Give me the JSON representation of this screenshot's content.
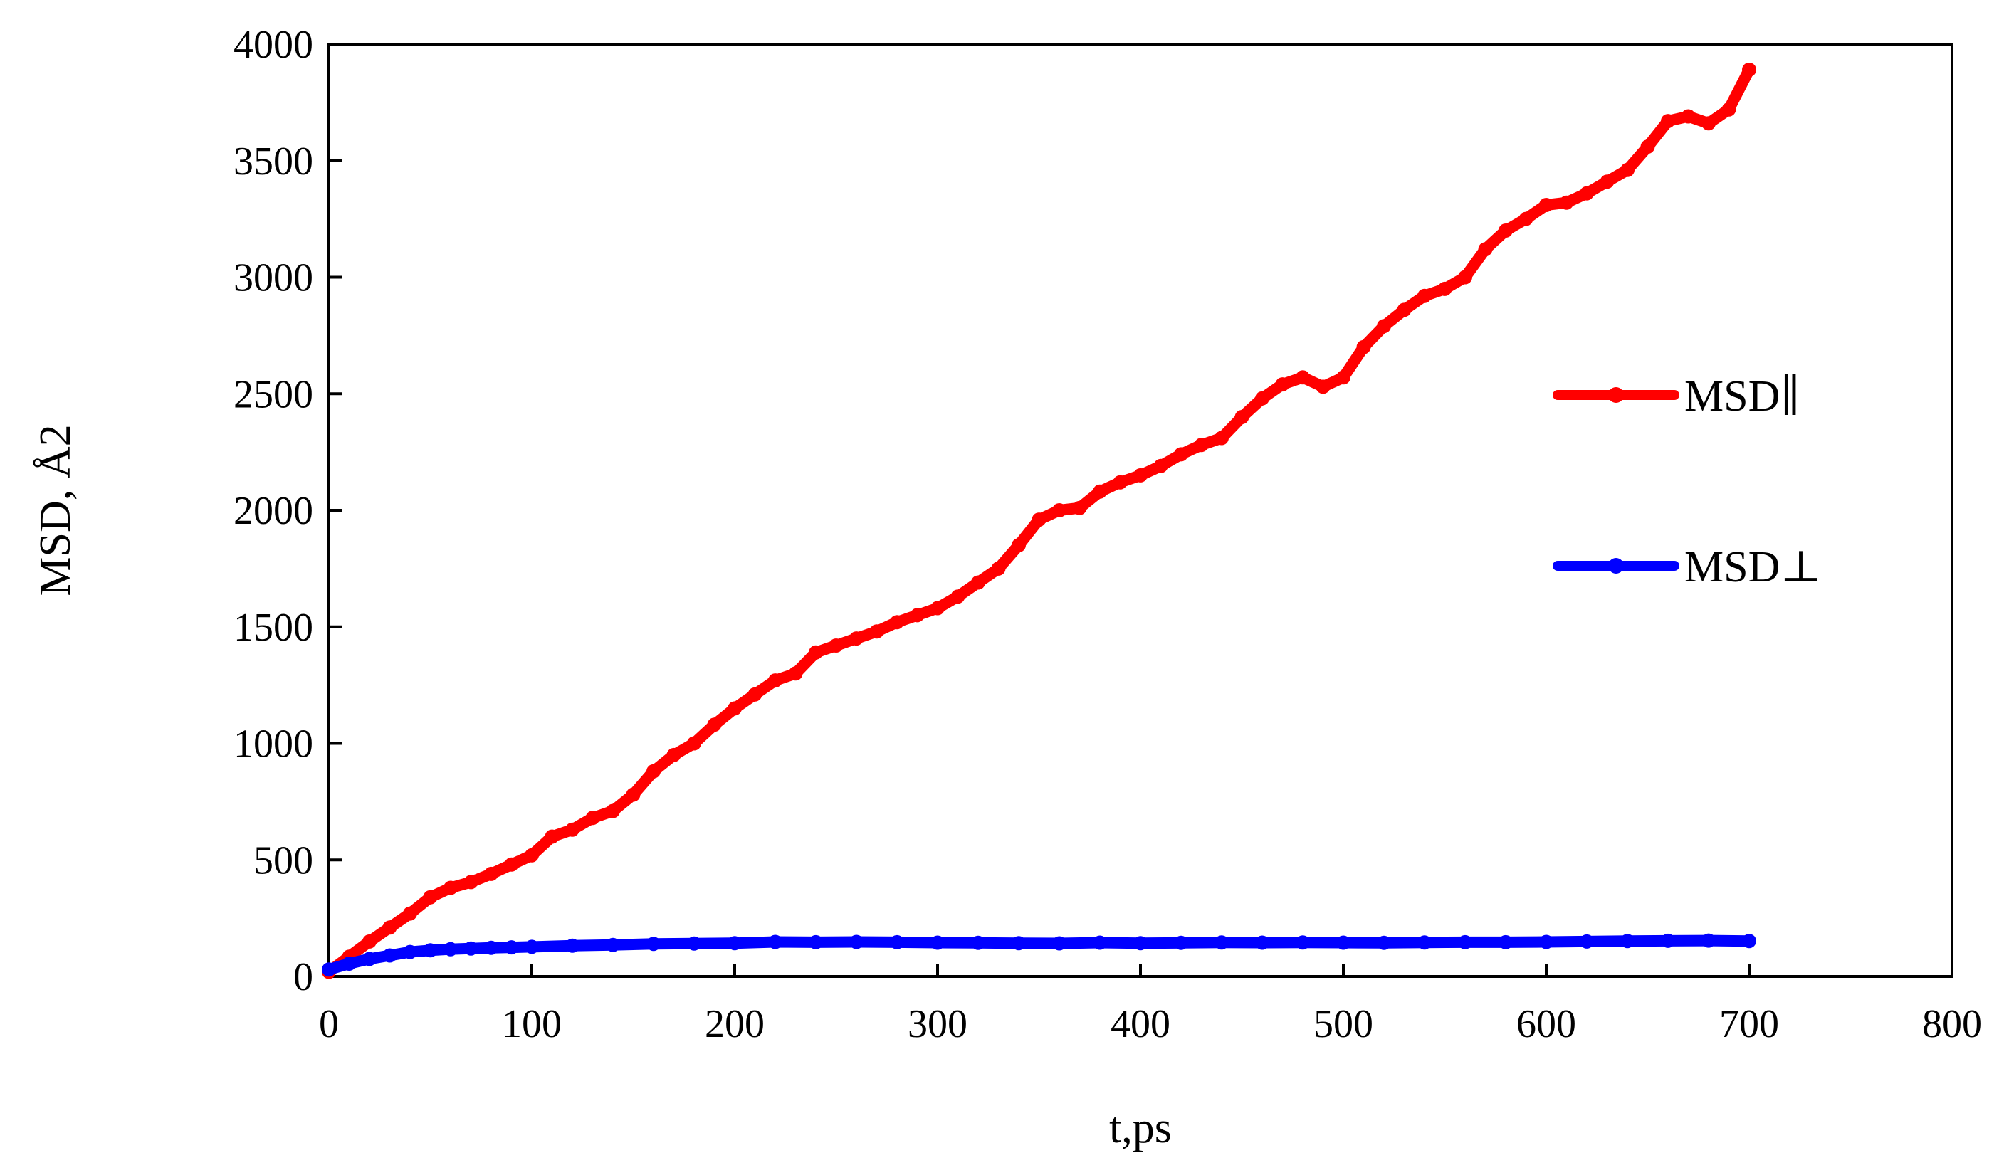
{
  "chart_data": {
    "type": "line",
    "title": "",
    "xlabel": "t,ps",
    "ylabel": "MSD,  Å2",
    "xlim": [
      0,
      800
    ],
    "ylim": [
      0,
      4000
    ],
    "xticks": [
      0,
      100,
      200,
      300,
      400,
      500,
      600,
      700,
      800
    ],
    "yticks": [
      0,
      500,
      1000,
      1500,
      2000,
      2500,
      3000,
      3500,
      4000
    ],
    "x_tick_labels": [
      "0",
      "100",
      "200",
      "300",
      "400",
      "500",
      "600",
      "700",
      "800"
    ],
    "y_tick_labels": [
      "0",
      "500",
      "1000",
      "1500",
      "2000",
      "2500",
      "3000",
      "3500",
      "4000"
    ],
    "grid": false,
    "legend_position": "right",
    "series": [
      {
        "name": "MSD∥",
        "color": "#ff0000",
        "x": [
          0,
          10,
          20,
          30,
          40,
          50,
          60,
          70,
          80,
          90,
          100,
          110,
          120,
          130,
          140,
          150,
          160,
          170,
          180,
          190,
          200,
          210,
          220,
          230,
          240,
          250,
          260,
          270,
          280,
          290,
          300,
          310,
          320,
          330,
          340,
          350,
          360,
          370,
          380,
          390,
          400,
          410,
          420,
          430,
          440,
          450,
          460,
          470,
          480,
          490,
          500,
          510,
          520,
          530,
          540,
          550,
          560,
          570,
          580,
          590,
          600,
          610,
          620,
          630,
          640,
          650,
          660,
          670,
          680,
          690,
          700
        ],
        "values": [
          20,
          85,
          150,
          210,
          270,
          340,
          380,
          405,
          440,
          480,
          520,
          600,
          630,
          680,
          710,
          780,
          880,
          950,
          1000,
          1080,
          1150,
          1210,
          1270,
          1300,
          1390,
          1420,
          1450,
          1480,
          1520,
          1550,
          1580,
          1630,
          1690,
          1750,
          1850,
          1960,
          2000,
          2010,
          2080,
          2120,
          2150,
          2190,
          2240,
          2280,
          2310,
          2400,
          2480,
          2540,
          2570,
          2530,
          2570,
          2700,
          2790,
          2860,
          2920,
          2950,
          3000,
          3120,
          3200,
          3250,
          3310,
          3320,
          3360,
          3410,
          3460,
          3560,
          3670,
          3690,
          3660,
          3720,
          3890
        ]
      },
      {
        "name": "MSD⊥",
        "color": "#0000ff",
        "x": [
          0,
          10,
          20,
          30,
          40,
          50,
          60,
          70,
          80,
          90,
          100,
          120,
          140,
          160,
          180,
          200,
          220,
          240,
          260,
          280,
          300,
          320,
          340,
          360,
          380,
          400,
          420,
          440,
          460,
          480,
          500,
          520,
          540,
          560,
          580,
          600,
          620,
          640,
          660,
          680,
          700
        ],
        "values": [
          30,
          55,
          75,
          90,
          105,
          112,
          117,
          120,
          123,
          125,
          127,
          132,
          135,
          140,
          141,
          143,
          148,
          147,
          148,
          147,
          145,
          144,
          143,
          142,
          145,
          143,
          144,
          146,
          145,
          146,
          145,
          144,
          146,
          147,
          147,
          148,
          150,
          152,
          153,
          154,
          152
        ]
      }
    ]
  }
}
